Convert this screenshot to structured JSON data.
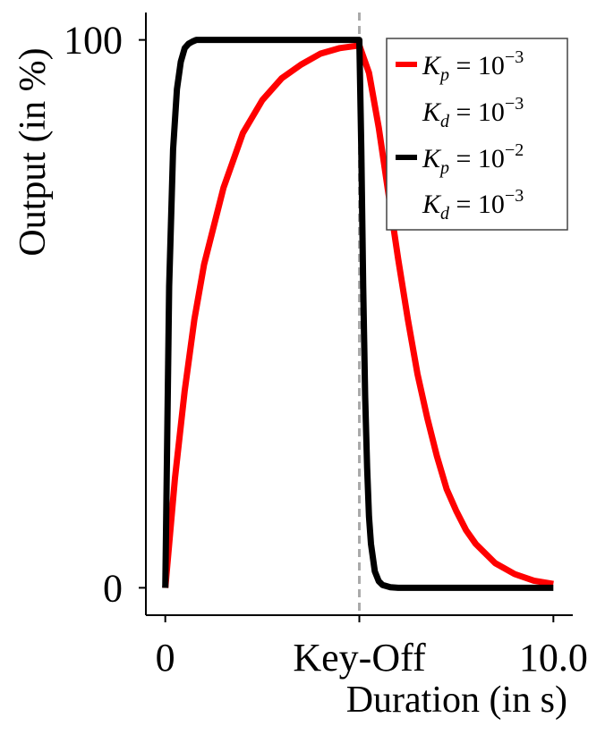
{
  "chart_data": {
    "type": "line",
    "title": "",
    "xlabel": "Duration (in s)",
    "ylabel": "Output (in %)",
    "xlim": [
      -0.5,
      10.5
    ],
    "ylim": [
      -5,
      105
    ],
    "key_off_x": 5.0,
    "key_off_line_color": "#aaaaaa",
    "x_ticks": [
      {
        "value": 0,
        "label": "0"
      },
      {
        "value": 5,
        "label": "Key-Off"
      },
      {
        "value": 10,
        "label": "10.0"
      }
    ],
    "y_ticks": [
      {
        "value": 0,
        "label": "0"
      },
      {
        "value": 100,
        "label": "100"
      }
    ],
    "grid": false,
    "legend_position": "top-right",
    "series": [
      {
        "name": "Kp = 10^-3, Kd = 10^-3",
        "label_lines": [
          {
            "sym": "K",
            "sub": "p",
            "exp": "−3"
          },
          {
            "sym": "K",
            "sub": "d",
            "exp": "−3"
          }
        ],
        "color": "#ff0000",
        "x": [
          0,
          0.25,
          0.5,
          0.75,
          1.0,
          1.5,
          2.0,
          2.5,
          3.0,
          3.5,
          4.0,
          4.5,
          5.0,
          5.25,
          5.5,
          5.75,
          6.0,
          6.25,
          6.5,
          6.75,
          7.0,
          7.25,
          7.5,
          7.75,
          8.0,
          8.5,
          9.0,
          9.5,
          10.0
        ],
        "y": [
          0,
          20,
          36,
          49,
          59,
          73,
          83,
          89,
          93,
          95.5,
          97.5,
          98.5,
          99,
          94,
          84,
          72,
          60,
          49,
          39,
          31,
          24,
          18,
          14,
          10.5,
          8,
          4.5,
          2.5,
          1.3,
          0.7
        ]
      },
      {
        "name": "Kp = 10^-2, Kd = 10^-3",
        "label_lines": [
          {
            "sym": "K",
            "sub": "p",
            "exp": "−2"
          },
          {
            "sym": "K",
            "sub": "d",
            "exp": "−3"
          }
        ],
        "color": "#000000",
        "x": [
          0,
          0.1,
          0.2,
          0.3,
          0.4,
          0.5,
          0.6,
          0.7,
          0.8,
          1.0,
          2.0,
          3.0,
          4.0,
          5.0,
          5.05,
          5.1,
          5.15,
          5.2,
          5.25,
          5.3,
          5.4,
          5.5,
          5.6,
          5.8,
          6.0,
          7.0,
          8.0,
          9.0,
          10.0
        ],
        "y": [
          0,
          55,
          80,
          91,
          96,
          98.5,
          99.3,
          99.7,
          100,
          100,
          100,
          100,
          100,
          100,
          80,
          55,
          35,
          22,
          13,
          8,
          3,
          1.2,
          0.5,
          0.1,
          0,
          0,
          0,
          0,
          0
        ]
      }
    ]
  }
}
